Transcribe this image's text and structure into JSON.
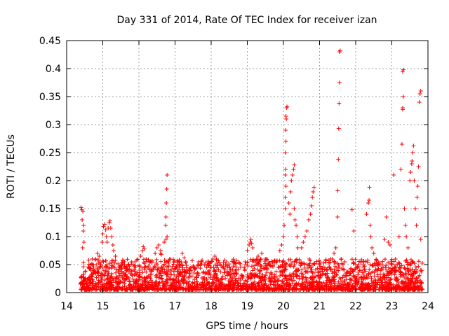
{
  "chart_data": {
    "type": "scatter",
    "title": "Day 331 of 2014, Rate Of TEC Index for receiver izan",
    "xlabel": "GPS time / hours",
    "ylabel": "ROTI / TECUs",
    "xlim": [
      14,
      24
    ],
    "ylim": [
      0,
      0.45
    ],
    "x_ticks": [
      "14",
      "15",
      "16",
      "17",
      "18",
      "19",
      "20",
      "21",
      "22",
      "23",
      "24"
    ],
    "y_ticks": [
      "0",
      "0.05",
      "0.1",
      "0.15",
      "0.2",
      "0.25",
      "0.3",
      "0.35",
      "0.4",
      "0.45"
    ],
    "grid": true,
    "marker": "+",
    "color": "#ff0000",
    "series": [
      {
        "name": "ROTI",
        "points": [
          [
            14.4,
            0.152
          ],
          [
            14.42,
            0.148
          ],
          [
            14.45,
            0.145
          ],
          [
            14.43,
            0.13
          ],
          [
            14.47,
            0.12
          ],
          [
            14.46,
            0.11
          ],
          [
            14.48,
            0.09
          ],
          [
            14.44,
            0.08
          ],
          [
            14.8,
            0.06
          ],
          [
            14.85,
            0.07
          ],
          [
            14.9,
            0.065
          ],
          [
            14.95,
            0.05
          ],
          [
            14.98,
            0.09
          ],
          [
            15.0,
            0.105
          ],
          [
            15.02,
            0.118
          ],
          [
            15.05,
            0.122
          ],
          [
            15.08,
            0.112
          ],
          [
            15.1,
            0.1
          ],
          [
            15.12,
            0.09
          ],
          [
            15.15,
            0.115
          ],
          [
            15.18,
            0.125
          ],
          [
            15.2,
            0.128
          ],
          [
            15.22,
            0.115
          ],
          [
            15.25,
            0.1
          ],
          [
            15.28,
            0.085
          ],
          [
            15.3,
            0.075
          ],
          [
            15.35,
            0.065
          ],
          [
            15.55,
            0.058
          ],
          [
            15.6,
            0.055
          ],
          [
            15.7,
            0.05
          ],
          [
            15.8,
            0.055
          ],
          [
            15.9,
            0.048
          ],
          [
            16.05,
            0.065
          ],
          [
            16.1,
            0.075
          ],
          [
            16.12,
            0.082
          ],
          [
            16.15,
            0.078
          ],
          [
            16.2,
            0.06
          ],
          [
            16.45,
            0.07
          ],
          [
            16.5,
            0.08
          ],
          [
            16.55,
            0.085
          ],
          [
            16.6,
            0.075
          ],
          [
            16.6,
            0.07
          ],
          [
            16.62,
            0.068
          ],
          [
            16.7,
            0.09
          ],
          [
            16.75,
            0.095
          ],
          [
            16.78,
            0.1
          ],
          [
            16.74,
            0.12
          ],
          [
            16.75,
            0.135
          ],
          [
            16.76,
            0.16
          ],
          [
            16.77,
            0.185
          ],
          [
            16.78,
            0.21
          ],
          [
            16.85,
            0.06
          ],
          [
            17.2,
            0.07
          ],
          [
            17.25,
            0.062
          ],
          [
            17.3,
            0.055
          ],
          [
            17.5,
            0.045
          ],
          [
            17.7,
            0.05
          ],
          [
            18.0,
            0.055
          ],
          [
            18.05,
            0.06
          ],
          [
            18.1,
            0.065
          ],
          [
            18.15,
            0.058
          ],
          [
            18.4,
            0.05
          ],
          [
            18.5,
            0.045
          ],
          [
            18.7,
            0.035
          ],
          [
            19.0,
            0.075
          ],
          [
            19.05,
            0.085
          ],
          [
            19.08,
            0.09
          ],
          [
            19.1,
            0.095
          ],
          [
            19.12,
            0.088
          ],
          [
            19.15,
            0.08
          ],
          [
            19.3,
            0.065
          ],
          [
            19.4,
            0.07
          ],
          [
            19.5,
            0.06
          ],
          [
            19.7,
            0.055
          ],
          [
            19.9,
            0.075
          ],
          [
            19.95,
            0.085
          ],
          [
            20.0,
            0.1
          ],
          [
            20.02,
            0.12
          ],
          [
            20.05,
            0.15
          ],
          [
            20.05,
            0.17
          ],
          [
            20.07,
            0.19
          ],
          [
            20.05,
            0.21
          ],
          [
            20.06,
            0.22
          ],
          [
            20.05,
            0.25
          ],
          [
            20.07,
            0.27
          ],
          [
            20.06,
            0.29
          ],
          [
            20.08,
            0.31
          ],
          [
            20.07,
            0.315
          ],
          [
            20.09,
            0.33
          ],
          [
            20.1,
            0.332
          ],
          [
            20.15,
            0.16
          ],
          [
            20.18,
            0.14
          ],
          [
            20.2,
            0.18
          ],
          [
            20.22,
            0.2
          ],
          [
            20.25,
            0.21
          ],
          [
            20.28,
            0.22
          ],
          [
            20.3,
            0.228
          ],
          [
            20.3,
            0.15
          ],
          [
            20.32,
            0.13
          ],
          [
            20.35,
            0.12
          ],
          [
            20.38,
            0.1
          ],
          [
            20.4,
            0.08
          ],
          [
            20.5,
            0.08
          ],
          [
            20.55,
            0.09
          ],
          [
            20.6,
            0.1
          ],
          [
            20.65,
            0.11
          ],
          [
            20.7,
            0.13
          ],
          [
            20.75,
            0.14
          ],
          [
            20.78,
            0.155
          ],
          [
            20.8,
            0.17
          ],
          [
            20.82,
            0.18
          ],
          [
            20.85,
            0.188
          ],
          [
            21.0,
            0.05
          ],
          [
            21.1,
            0.045
          ],
          [
            21.2,
            0.04
          ],
          [
            21.35,
            0.06
          ],
          [
            21.4,
            0.07
          ],
          [
            21.45,
            0.08
          ],
          [
            21.5,
            0.135
          ],
          [
            21.5,
            0.182
          ],
          [
            21.52,
            0.238
          ],
          [
            21.53,
            0.293
          ],
          [
            21.54,
            0.338
          ],
          [
            21.55,
            0.375
          ],
          [
            21.55,
            0.43
          ],
          [
            21.57,
            0.432
          ],
          [
            21.6,
            0.06
          ],
          [
            21.65,
            0.05
          ],
          [
            21.9,
            0.148
          ],
          [
            21.95,
            0.11
          ],
          [
            22.0,
            0.05
          ],
          [
            22.05,
            0.045
          ],
          [
            22.3,
            0.14
          ],
          [
            22.35,
            0.16
          ],
          [
            22.37,
            0.165
          ],
          [
            22.38,
            0.188
          ],
          [
            22.4,
            0.12
          ],
          [
            22.42,
            0.1
          ],
          [
            22.45,
            0.08
          ],
          [
            22.5,
            0.07
          ],
          [
            22.8,
            0.095
          ],
          [
            22.85,
            0.135
          ],
          [
            22.9,
            0.09
          ],
          [
            22.95,
            0.085
          ],
          [
            23.05,
            0.21
          ],
          [
            23.1,
            0.06
          ],
          [
            23.12,
            0.05
          ],
          [
            23.2,
            0.1
          ],
          [
            23.25,
            0.22
          ],
          [
            23.28,
            0.265
          ],
          [
            23.3,
            0.33
          ],
          [
            23.3,
            0.327
          ],
          [
            23.32,
            0.35
          ],
          [
            23.3,
            0.395
          ],
          [
            23.32,
            0.398
          ],
          [
            23.35,
            0.15
          ],
          [
            23.38,
            0.12
          ],
          [
            23.4,
            0.1
          ],
          [
            23.45,
            0.08
          ],
          [
            23.5,
            0.2
          ],
          [
            23.52,
            0.215
          ],
          [
            23.55,
            0.23
          ],
          [
            23.56,
            0.235
          ],
          [
            23.58,
            0.25
          ],
          [
            23.6,
            0.262
          ],
          [
            23.62,
            0.2
          ],
          [
            23.65,
            0.15
          ],
          [
            23.68,
            0.12
          ],
          [
            23.7,
            0.17
          ],
          [
            23.72,
            0.19
          ],
          [
            23.74,
            0.225
          ],
          [
            23.76,
            0.34
          ],
          [
            23.78,
            0.355
          ],
          [
            23.8,
            0.36
          ],
          [
            23.8,
            0.095
          ]
        ]
      }
    ]
  }
}
